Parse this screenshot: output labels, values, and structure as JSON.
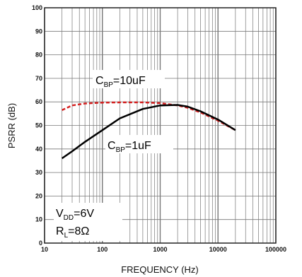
{
  "chart_data": {
    "type": "line",
    "xlabel": "FREQUENCY (Hz)",
    "ylabel": "PSRR (dB)",
    "xscale": "log",
    "xlim": [
      10,
      100000
    ],
    "ylim": [
      0,
      100
    ],
    "grid": true,
    "x_ticks": [
      "10",
      "100",
      "1000",
      "10000",
      "100000"
    ],
    "y_ticks": [
      "0",
      "10",
      "20",
      "30",
      "40",
      "50",
      "60",
      "70",
      "80",
      "90",
      "100"
    ],
    "series": [
      {
        "name": "C_BP=10uF",
        "label_main": "C",
        "label_sub": "BP",
        "label_rest": "=10uF",
        "color": "#d42020",
        "style": "dashed",
        "x": [
          20,
          30,
          50,
          100,
          200,
          500,
          1000,
          2000,
          3000,
          5000,
          10000,
          20000
        ],
        "y": [
          56.5,
          58.5,
          59.3,
          59.7,
          59.8,
          59.8,
          59.5,
          58.5,
          57.5,
          55.5,
          52,
          48
        ]
      },
      {
        "name": "C_BP=1uF",
        "label_main": "C",
        "label_sub": "BP",
        "label_rest": "=1uF",
        "color": "#000000",
        "style": "solid",
        "x": [
          20,
          30,
          50,
          100,
          200,
          500,
          1000,
          2000,
          3000,
          5000,
          10000,
          20000
        ],
        "y": [
          36,
          39,
          43,
          48,
          53,
          57,
          58.5,
          58.7,
          58,
          56,
          52.5,
          48
        ]
      }
    ],
    "annotations": {
      "vdd_main": "V",
      "vdd_sub": "DD",
      "vdd_rest": "=6V",
      "rl_main": "R",
      "rl_sub": "L",
      "rl_rest": "=8Ω"
    }
  }
}
